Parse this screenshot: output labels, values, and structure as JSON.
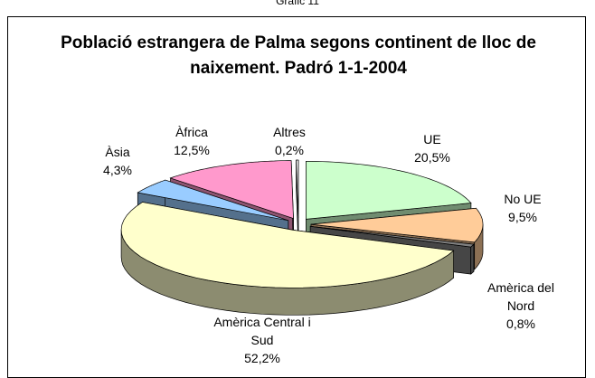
{
  "header": "Gràfic 11",
  "chart_data": {
    "type": "pie3d",
    "title": "Població estrangera de Palma segons continent de lloc de naixement. Padró 1-1-2004",
    "categories": [
      "UE",
      "No UE",
      "Amèrica del Nord",
      "Amèrica Central i Sud",
      "Àsia",
      "Àfrica",
      "Altres"
    ],
    "values": [
      20.5,
      9.5,
      0.8,
      52.2,
      4.3,
      12.5,
      0.2
    ],
    "value_labels": [
      "20,5%",
      "9,5%",
      "0,8%",
      "52,2%",
      "4,3%",
      "12,5%",
      "0,2%"
    ],
    "colors": [
      "#ccffcc",
      "#ffcc99",
      "#808080",
      "#ffffcc",
      "#99ccff",
      "#ff99cc",
      "#ffffff"
    ]
  }
}
